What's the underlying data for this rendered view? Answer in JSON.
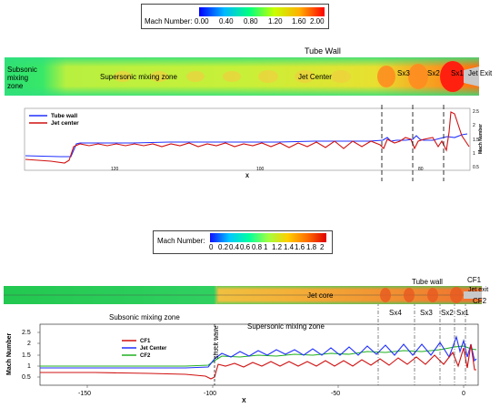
{
  "top": {
    "colorbar": {
      "title": "Mach Number:",
      "ticks": [
        "0.00",
        "0.40",
        "0.80",
        "1.20",
        "1.60",
        "2.00"
      ],
      "colors": [
        "#0000ff",
        "#00b8ff",
        "#00ff80",
        "#c8ff00",
        "#ffb000",
        "#ff0000"
      ]
    },
    "field": {
      "tube_wall": "Tube Wall",
      "subsonic": "Subsonic\nmixing\nzone",
      "supersonic": "Supersonic mixing zone",
      "jet_center": "Jet Center",
      "sx3": "Sx3",
      "sx2": "Sx2",
      "sx1": "Sx1",
      "jet_exit": "Jet Exit"
    },
    "chart_data": {
      "type": "line",
      "xlabel": "X",
      "ylabel": "Mach Number",
      "x_ticks": [
        "120",
        "100",
        "80"
      ],
      "y_ticks": [
        "0.5",
        "1",
        "1.5",
        "2",
        "2.5"
      ],
      "ylim": [
        0.5,
        2.5
      ],
      "legend": "top-left",
      "series": [
        {
          "name": "Tube wall",
          "color": "#2030ff"
        },
        {
          "name": "Jet center",
          "color": "#d01010"
        }
      ]
    }
  },
  "bottom": {
    "colorbar": {
      "title": "Mach Number:",
      "ticks": [
        "0",
        "0.2",
        "0.4",
        "0.6",
        "0.8",
        "1",
        "1.2",
        "1.4",
        "1.6",
        "1.8",
        "2"
      ],
      "colors": [
        "#1010ff",
        "#00c8ff",
        "#00ffa0",
        "#a0ff40",
        "#ffd000",
        "#ff7000",
        "#e00000"
      ]
    },
    "field": {
      "tube_wall": "Tube wall",
      "jet_core": "Jet core",
      "cf1": "CF1",
      "jet_exit": "Jet exit",
      "cf2": "CF2",
      "sx4": "Sx4",
      "sx3": "Sx3",
      "sx2": "Sx2",
      "sx1": "Sx1",
      "subsonic": "Subsonic mixing zone",
      "supersonic": "Supersonic mixing zone",
      "shock_wave": "shock wave"
    },
    "chart_data": {
      "type": "line",
      "xlabel": "X",
      "ylabel": "Mach Number",
      "x_ticks": [
        "-150",
        "-100",
        "-50",
        "0"
      ],
      "y_ticks": [
        "0.5",
        "1",
        "1.5",
        "2",
        "2.5"
      ],
      "xlim": [
        -170,
        5
      ],
      "ylim": [
        0.3,
        2.5
      ],
      "legend": "top-left",
      "series": [
        {
          "name": "CF1",
          "color": "#d01010"
        },
        {
          "name": "Jet Center",
          "color": "#2030ff"
        },
        {
          "name": "CF2",
          "color": "#20b020"
        }
      ]
    }
  }
}
